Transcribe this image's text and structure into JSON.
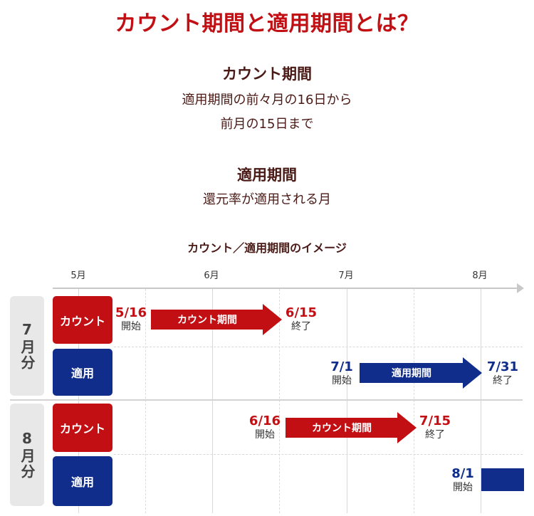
{
  "title": "カウント期間と適用期間とは？",
  "count_period": {
    "heading": "カウント期間",
    "lines": [
      "適用期間の前々月の16日から",
      "前月の15日まで"
    ]
  },
  "apply_period": {
    "heading": "適用期間",
    "lines": [
      "還元率が適用される月"
    ]
  },
  "image_title": "カウント／適用期間のイメージ",
  "months": [
    "5月",
    "6月",
    "7月",
    "8月"
  ],
  "groups": [
    {
      "label": "7月分",
      "rows": [
        {
          "label": "カウント",
          "start_date": "5/16",
          "start_text": "開始",
          "bar_label": "カウント期間",
          "end_date": "6/15",
          "end_text": "終了"
        },
        {
          "label": "適用",
          "start_date": "7/1",
          "start_text": "開始",
          "bar_label": "適用期間",
          "end_date": "7/31",
          "end_text": "終了"
        }
      ]
    },
    {
      "label": "8月分",
      "rows": [
        {
          "label": "カウント",
          "start_date": "6/16",
          "start_text": "開始",
          "bar_label": "カウント期間",
          "end_date": "7/15",
          "end_text": "終了"
        },
        {
          "label": "適用",
          "start_date": "8/1",
          "start_text": "開始"
        }
      ]
    }
  ],
  "colors": {
    "red": "#c20f14",
    "blue": "#102d8c",
    "text": "#4a1a16"
  }
}
